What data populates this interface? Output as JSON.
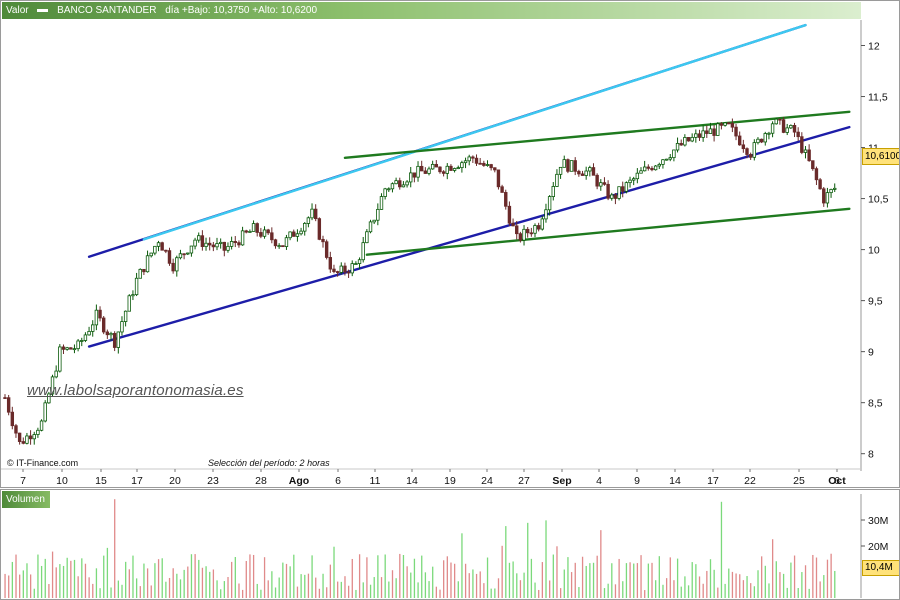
{
  "price_panel": {
    "label": "Valor",
    "security": "BANCO SANTANDER",
    "range_text": "día +Bajo: 10,3750 +Alto: 10,6200",
    "last_price_label": "10,6100",
    "watermark": "www.labolsaporantonomasia.es",
    "source": "© IT-Finance.com",
    "period_note": "Selección del período: 2 horas"
  },
  "volume_panel": {
    "label": "Volumen",
    "last_volume_label": "10,4M"
  },
  "colors": {
    "up_candle": "#0a5a0a",
    "down_candle": "#6a2a2a",
    "channel_blue": "#1d1da8",
    "channel_cyan": "#3cc8f0",
    "channel_green": "#1f7a1f",
    "volume_up": "#7bd97b",
    "volume_down": "#e08a8a"
  },
  "chart_data": [
    {
      "type": "candlestick",
      "ylim": [
        7.85,
        12.25
      ],
      "y_ticks": [
        "8",
        "8,5",
        "9",
        "9,5",
        "10",
        "10,5",
        "11",
        "11,5",
        "12"
      ],
      "x_ticks": [
        "7",
        "10",
        "15",
        "17",
        "20",
        "23",
        "28",
        "Ago",
        "6",
        "11",
        "14",
        "19",
        "24",
        "27",
        "Sep",
        "4",
        "9",
        "14",
        "17",
        "22",
        "25",
        "Oct",
        "6"
      ],
      "month_ticks": [
        "Ago",
        "Sep",
        "Oct"
      ],
      "price_path": [
        [
          0,
          8.55
        ],
        [
          4,
          8.1
        ],
        [
          10,
          8.3
        ],
        [
          15,
          9.0
        ],
        [
          20,
          9.05
        ],
        [
          25,
          9.35
        ],
        [
          30,
          9.1
        ],
        [
          36,
          9.7
        ],
        [
          42,
          10.1
        ],
        [
          46,
          9.85
        ],
        [
          52,
          10.1
        ],
        [
          60,
          10.0
        ],
        [
          68,
          10.2
        ],
        [
          76,
          10.05
        ],
        [
          84,
          10.35
        ],
        [
          90,
          9.75
        ],
        [
          96,
          9.85
        ],
        [
          104,
          10.6
        ],
        [
          112,
          10.75
        ],
        [
          120,
          10.8
        ],
        [
          128,
          10.9
        ],
        [
          134,
          10.75
        ],
        [
          140,
          10.1
        ],
        [
          146,
          10.25
        ],
        [
          152,
          10.85
        ],
        [
          160,
          10.75
        ],
        [
          166,
          10.5
        ],
        [
          174,
          10.75
        ],
        [
          180,
          10.9
        ],
        [
          186,
          11.05
        ],
        [
          192,
          11.15
        ],
        [
          198,
          11.2
        ],
        [
          204,
          10.95
        ],
        [
          210,
          11.25
        ],
        [
          216,
          11.15
        ],
        [
          220,
          10.85
        ],
        [
          224,
          10.5
        ],
        [
          227,
          10.6
        ]
      ],
      "trend_lines": [
        {
          "name": "",
          "color": "channel_blue",
          "from": [
            23,
            9.93
          ],
          "to": [
            219,
            12.2
          ]
        },
        {
          "name": "",
          "color": "channel_cyan",
          "from": [
            38,
            10.1
          ],
          "to": [
            219,
            12.2
          ]
        },
        {
          "name": "",
          "color": "channel_blue",
          "from": [
            23,
            9.05
          ],
          "to": [
            231,
            11.2
          ]
        },
        {
          "name": "",
          "color": "channel_green",
          "from": [
            93,
            10.9
          ],
          "to": [
            231,
            11.35
          ]
        },
        {
          "name": "",
          "color": "channel_green",
          "from": [
            99,
            9.95
          ],
          "to": [
            231,
            10.4
          ]
        }
      ]
    },
    {
      "type": "bar",
      "title": "Volumen",
      "ylim": [
        0,
        40
      ],
      "y_ticks": [
        "10,4M",
        "20M",
        "30M"
      ],
      "last_value": 10.4,
      "max_value": 38
    }
  ]
}
